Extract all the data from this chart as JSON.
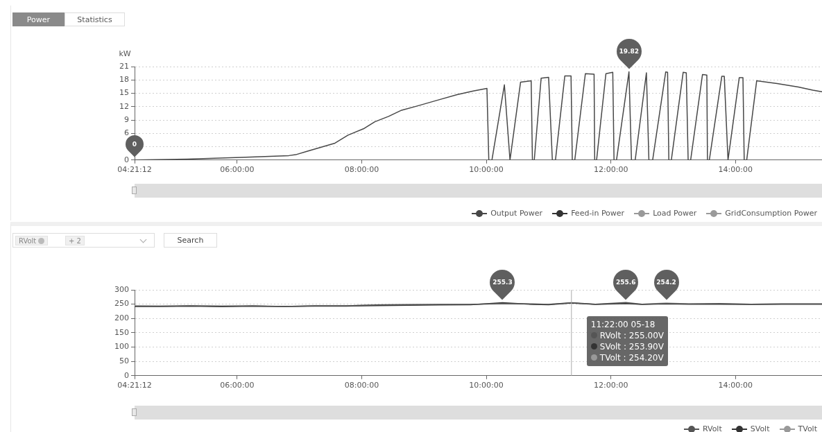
{
  "chart_data": [
    {
      "type": "line",
      "ylabel": "kW",
      "annotations": [
        "Power",
        "Statistics",
        {
          "text": "19.82",
          "x": 12.29,
          "y": 19.82
        },
        {
          "text": "0",
          "x": 4.3533,
          "y": 0
        }
      ],
      "xlim": [
        4.3533,
        15.4
      ],
      "xticks": [
        {
          "value": 4.3533,
          "label": "04:21:12"
        },
        {
          "value": 6,
          "label": "06:00:00"
        },
        {
          "value": 8,
          "label": "08:00:00"
        },
        {
          "value": 10,
          "label": "10:00:00"
        },
        {
          "value": 12,
          "label": "12:00:00"
        },
        {
          "value": 14,
          "label": "14:00:00"
        }
      ],
      "ylim": [
        0,
        21
      ],
      "yticks": [
        0,
        {
          "value": 3,
          "label": null
        },
        6,
        9,
        12,
        15,
        18,
        21
      ],
      "grid": "y",
      "legend": "bottom right",
      "marker": "none",
      "series": [
        {
          "name": "Output Power",
          "color": "#474747",
          "x": [
            4.3533,
            5.2,
            6.06,
            6.83,
            6.94,
            7.13,
            7.35,
            7.57,
            7.78,
            8.04,
            8.21,
            8.43,
            8.64,
            8.88,
            9.23,
            9.53,
            9.79,
            10.01,
            10.04,
            10.09,
            10.29,
            10.38,
            10.55,
            10.72,
            10.74,
            10.77,
            10.88,
            11.0,
            11.06,
            11.11,
            11.26,
            11.36,
            11.38,
            11.42,
            11.59,
            11.73,
            11.74,
            11.77,
            11.92,
            12.03,
            12.05,
            12.09,
            12.29,
            12.33,
            12.39,
            12.57,
            12.61,
            12.67,
            12.88,
            12.91,
            12.93,
            12.97,
            13.16,
            13.21,
            13.24,
            13.28,
            13.47,
            13.54,
            13.55,
            13.58,
            13.78,
            13.82,
            13.88,
            14.06,
            14.12,
            14.14,
            14.18,
            14.34,
            14.67,
            15.01,
            15.24,
            15.4
          ],
          "values": [
            0,
            0.2,
            0.6,
            1.0,
            1.2,
            2.0,
            2.9,
            3.8,
            5.6,
            7.1,
            8.6,
            9.8,
            11.2,
            12.1,
            13.5,
            14.7,
            15.5,
            16.1,
            0,
            0,
            16.9,
            0,
            17.5,
            17.8,
            0,
            0,
            18.4,
            18.6,
            0,
            0,
            18.9,
            18.9,
            0,
            0,
            19.4,
            19.3,
            0,
            0,
            19.4,
            19.7,
            0,
            0,
            19.82,
            0,
            0,
            19.6,
            0,
            0,
            19.8,
            19.7,
            0,
            0,
            19.7,
            19.6,
            0,
            0,
            19.2,
            19.1,
            0,
            0,
            18.8,
            18.8,
            0,
            18.5,
            18.5,
            0,
            0,
            17.8,
            17.2,
            16.4,
            15.7,
            15.3
          ]
        },
        {
          "name": "Feed-in Power",
          "color": "#333333"
        },
        {
          "name": "Load Power",
          "color": "#999999"
        },
        {
          "name": "GridConsumption Power",
          "color": "#9a9a9a"
        }
      ]
    },
    {
      "type": "line",
      "annotations": [
        "RVolt",
        "+ 2",
        "Search",
        "RVolt : 255.00V",
        "SVolt : 253.90V",
        "TVolt : 254.20V",
        {
          "text": "255.3",
          "x": 10.26,
          "y": 255.3
        },
        {
          "text": "255.6",
          "x": 12.24,
          "y": 255.6
        },
        {
          "text": "254.2",
          "x": 12.89,
          "y": 254.2
        }
      ],
      "xlim": [
        4.3533,
        15.4
      ],
      "xticks": [
        {
          "value": 4.3533,
          "label": "04:21:12"
        },
        {
          "value": 6,
          "label": "06:00:00"
        },
        {
          "value": 8,
          "label": "08:00:00"
        },
        {
          "value": 10,
          "label": "10:00:00"
        },
        {
          "value": 12,
          "label": "12:00:00"
        },
        {
          "value": 14,
          "label": "14:00:00"
        }
      ],
      "ylim": [
        0,
        300
      ],
      "yticks": [
        0,
        50,
        100,
        150,
        200,
        250,
        300
      ],
      "grid": "y",
      "legend": "bottom right",
      "marker": "none",
      "ref_lines": [
        {
          "axis": "x",
          "value": 11.3667,
          "label": "11:22:00 05-18",
          "color": "#aaaaaa"
        }
      ],
      "x": [
        4.3533,
        4.75,
        5.25,
        5.75,
        6.25,
        6.75,
        7.25,
        7.75,
        8.25,
        8.75,
        9.25,
        9.75,
        10.26,
        10.75,
        11.0,
        11.3667,
        11.75,
        12.24,
        12.5,
        12.89,
        13.25,
        13.75,
        14.25,
        14.75,
        15.4
      ],
      "series": [
        {
          "name": "RVolt",
          "color": "#555555",
          "values": [
            243,
            243,
            244,
            243,
            244,
            242,
            244,
            244,
            247,
            248,
            249,
            249,
            252,
            251,
            249,
            255,
            250,
            256,
            250,
            252,
            251,
            252,
            250,
            251,
            251
          ]
        },
        {
          "name": "SVolt",
          "color": "#333333",
          "values": [
            242,
            242,
            243,
            241,
            243,
            242,
            243,
            243,
            245,
            246,
            247,
            248,
            255,
            249,
            248,
            254,
            249,
            252,
            249,
            251,
            250,
            250,
            249,
            250,
            250
          ]
        },
        {
          "name": "TVolt",
          "color": "#999999",
          "values": [
            244,
            243,
            244,
            243,
            243,
            242,
            244,
            244,
            248,
            249,
            249,
            250,
            251,
            250,
            250,
            254,
            250,
            253,
            250,
            254,
            251,
            251,
            250,
            251,
            251
          ]
        }
      ]
    }
  ]
}
